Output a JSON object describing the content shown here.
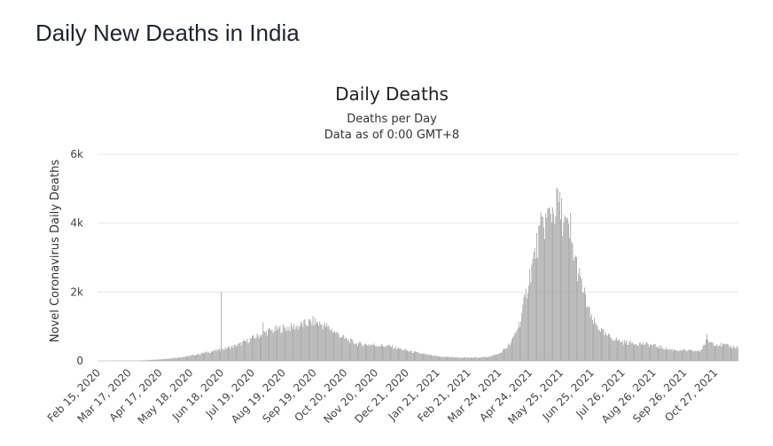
{
  "page": {
    "heading": "Daily New Deaths in India"
  },
  "chart_data": {
    "type": "bar",
    "title": "Daily Deaths",
    "subtitle_lines": [
      "Deaths per Day",
      "Data as of 0:00 GMT+8"
    ],
    "ylabel": "Novel Coronavirus Daily Deaths",
    "xlabel": "",
    "ylim": [
      0,
      6000
    ],
    "y_ticks": [
      {
        "value": 0,
        "label": "0"
      },
      {
        "value": 2000,
        "label": "2k"
      },
      {
        "value": 4000,
        "label": "4k"
      },
      {
        "value": 6000,
        "label": "6k"
      }
    ],
    "x_start_date": "2020-02-15",
    "x_end_date": "2021-11-19",
    "x_tick_labels": [
      "Feb 15, 2020",
      "Mar 17, 2020",
      "Apr 17, 2020",
      "May 18, 2020",
      "Jun 18, 2020",
      "Jul 19, 2020",
      "Aug 19, 2020",
      "Sep 19, 2020",
      "Oct 20, 2020",
      "Nov 20, 2020",
      "Dec 21, 2020",
      "Jan 21, 2021",
      "Feb 21, 2021",
      "Mar 24, 2021",
      "Apr 24, 2021",
      "May 25, 2021",
      "Jun 25, 2021",
      "Jul 26, 2021",
      "Aug 26, 2021",
      "Sep 26, 2021",
      "Oct 27, 2021"
    ],
    "x_tick_days": [
      0,
      31,
      62,
      93,
      124,
      155,
      186,
      217,
      248,
      279,
      310,
      341,
      372,
      403,
      434,
      465,
      496,
      527,
      558,
      589,
      620
    ],
    "series": [
      {
        "name": "Daily Deaths",
        "color": "#a6a6a6",
        "anchor_points": [
          {
            "day": 0,
            "value": 0
          },
          {
            "day": 40,
            "value": 5
          },
          {
            "day": 60,
            "value": 40
          },
          {
            "day": 75,
            "value": 80
          },
          {
            "day": 90,
            "value": 130
          },
          {
            "day": 110,
            "value": 250
          },
          {
            "day": 124,
            "value": 330
          },
          {
            "day": 140,
            "value": 450
          },
          {
            "day": 155,
            "value": 650
          },
          {
            "day": 170,
            "value": 850
          },
          {
            "day": 186,
            "value": 950
          },
          {
            "day": 200,
            "value": 1000
          },
          {
            "day": 217,
            "value": 1150
          },
          {
            "day": 230,
            "value": 1000
          },
          {
            "day": 248,
            "value": 650
          },
          {
            "day": 260,
            "value": 500
          },
          {
            "day": 279,
            "value": 460
          },
          {
            "day": 295,
            "value": 420
          },
          {
            "day": 310,
            "value": 300
          },
          {
            "day": 330,
            "value": 180
          },
          {
            "day": 341,
            "value": 130
          },
          {
            "day": 360,
            "value": 100
          },
          {
            "day": 372,
            "value": 90
          },
          {
            "day": 390,
            "value": 110
          },
          {
            "day": 403,
            "value": 200
          },
          {
            "day": 415,
            "value": 500
          },
          {
            "day": 425,
            "value": 1200
          },
          {
            "day": 434,
            "value": 2500
          },
          {
            "day": 445,
            "value": 3800
          },
          {
            "day": 455,
            "value": 4300
          },
          {
            "day": 462,
            "value": 4500
          },
          {
            "day": 467,
            "value": 4200
          },
          {
            "day": 475,
            "value": 3500
          },
          {
            "day": 485,
            "value": 2300
          },
          {
            "day": 496,
            "value": 1200
          },
          {
            "day": 510,
            "value": 750
          },
          {
            "day": 527,
            "value": 550
          },
          {
            "day": 545,
            "value": 500
          },
          {
            "day": 558,
            "value": 450
          },
          {
            "day": 575,
            "value": 330
          },
          {
            "day": 589,
            "value": 300
          },
          {
            "day": 605,
            "value": 280
          },
          {
            "day": 612,
            "value": 600
          },
          {
            "day": 620,
            "value": 500
          },
          {
            "day": 640,
            "value": 400
          }
        ],
        "spikes": [
          {
            "day": 124,
            "value": 2000
          },
          {
            "day": 166,
            "value": 1120
          },
          {
            "day": 462,
            "value": 4980
          },
          {
            "day": 475,
            "value": 4300
          },
          {
            "day": 612,
            "value": 780
          }
        ]
      }
    ]
  }
}
